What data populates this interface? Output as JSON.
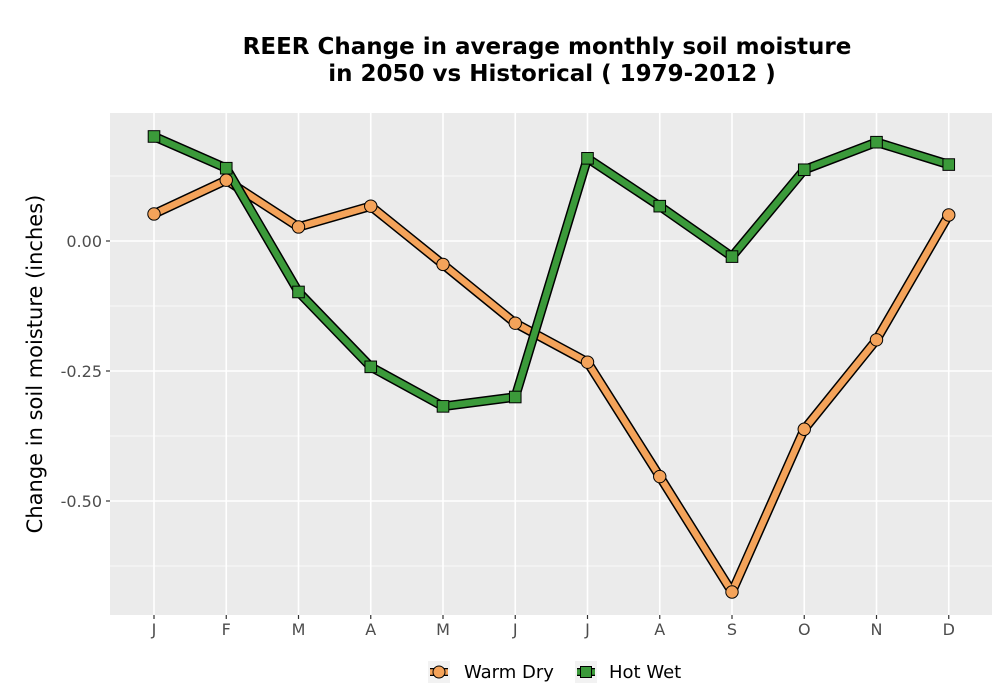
{
  "chart_data": {
    "type": "line",
    "title_line1": "REER  Change in average monthly soil moisture",
    "title_line2": "in 2050 vs Historical ( 1979-2012 )",
    "xlabel": "",
    "ylabel": "Change in soil moisture (inches)",
    "categories": [
      "J",
      "F",
      "M",
      "A",
      "M",
      "J",
      "J",
      "A",
      "S",
      "O",
      "N",
      "D"
    ],
    "yticks": [
      0.0,
      -0.25,
      -0.5
    ],
    "ytick_labels": [
      "0.00",
      "-0.25",
      "-0.50"
    ],
    "ylim": [
      -0.715,
      0.245
    ],
    "grid": true,
    "legend_position": "bottom",
    "series": [
      {
        "name": "Warm Dry",
        "color": "#f4a35a",
        "marker": "circle",
        "values": [
          0.052,
          0.117,
          0.027,
          0.067,
          -0.045,
          -0.158,
          -0.233,
          -0.453,
          -0.675,
          -0.362,
          -0.19,
          0.05
        ]
      },
      {
        "name": "Hot Wet",
        "color": "#3b9a3a",
        "marker": "square",
        "values": [
          0.201,
          0.14,
          -0.098,
          -0.242,
          -0.318,
          -0.3,
          0.159,
          0.067,
          -0.03,
          0.137,
          0.19,
          0.147
        ]
      }
    ]
  }
}
